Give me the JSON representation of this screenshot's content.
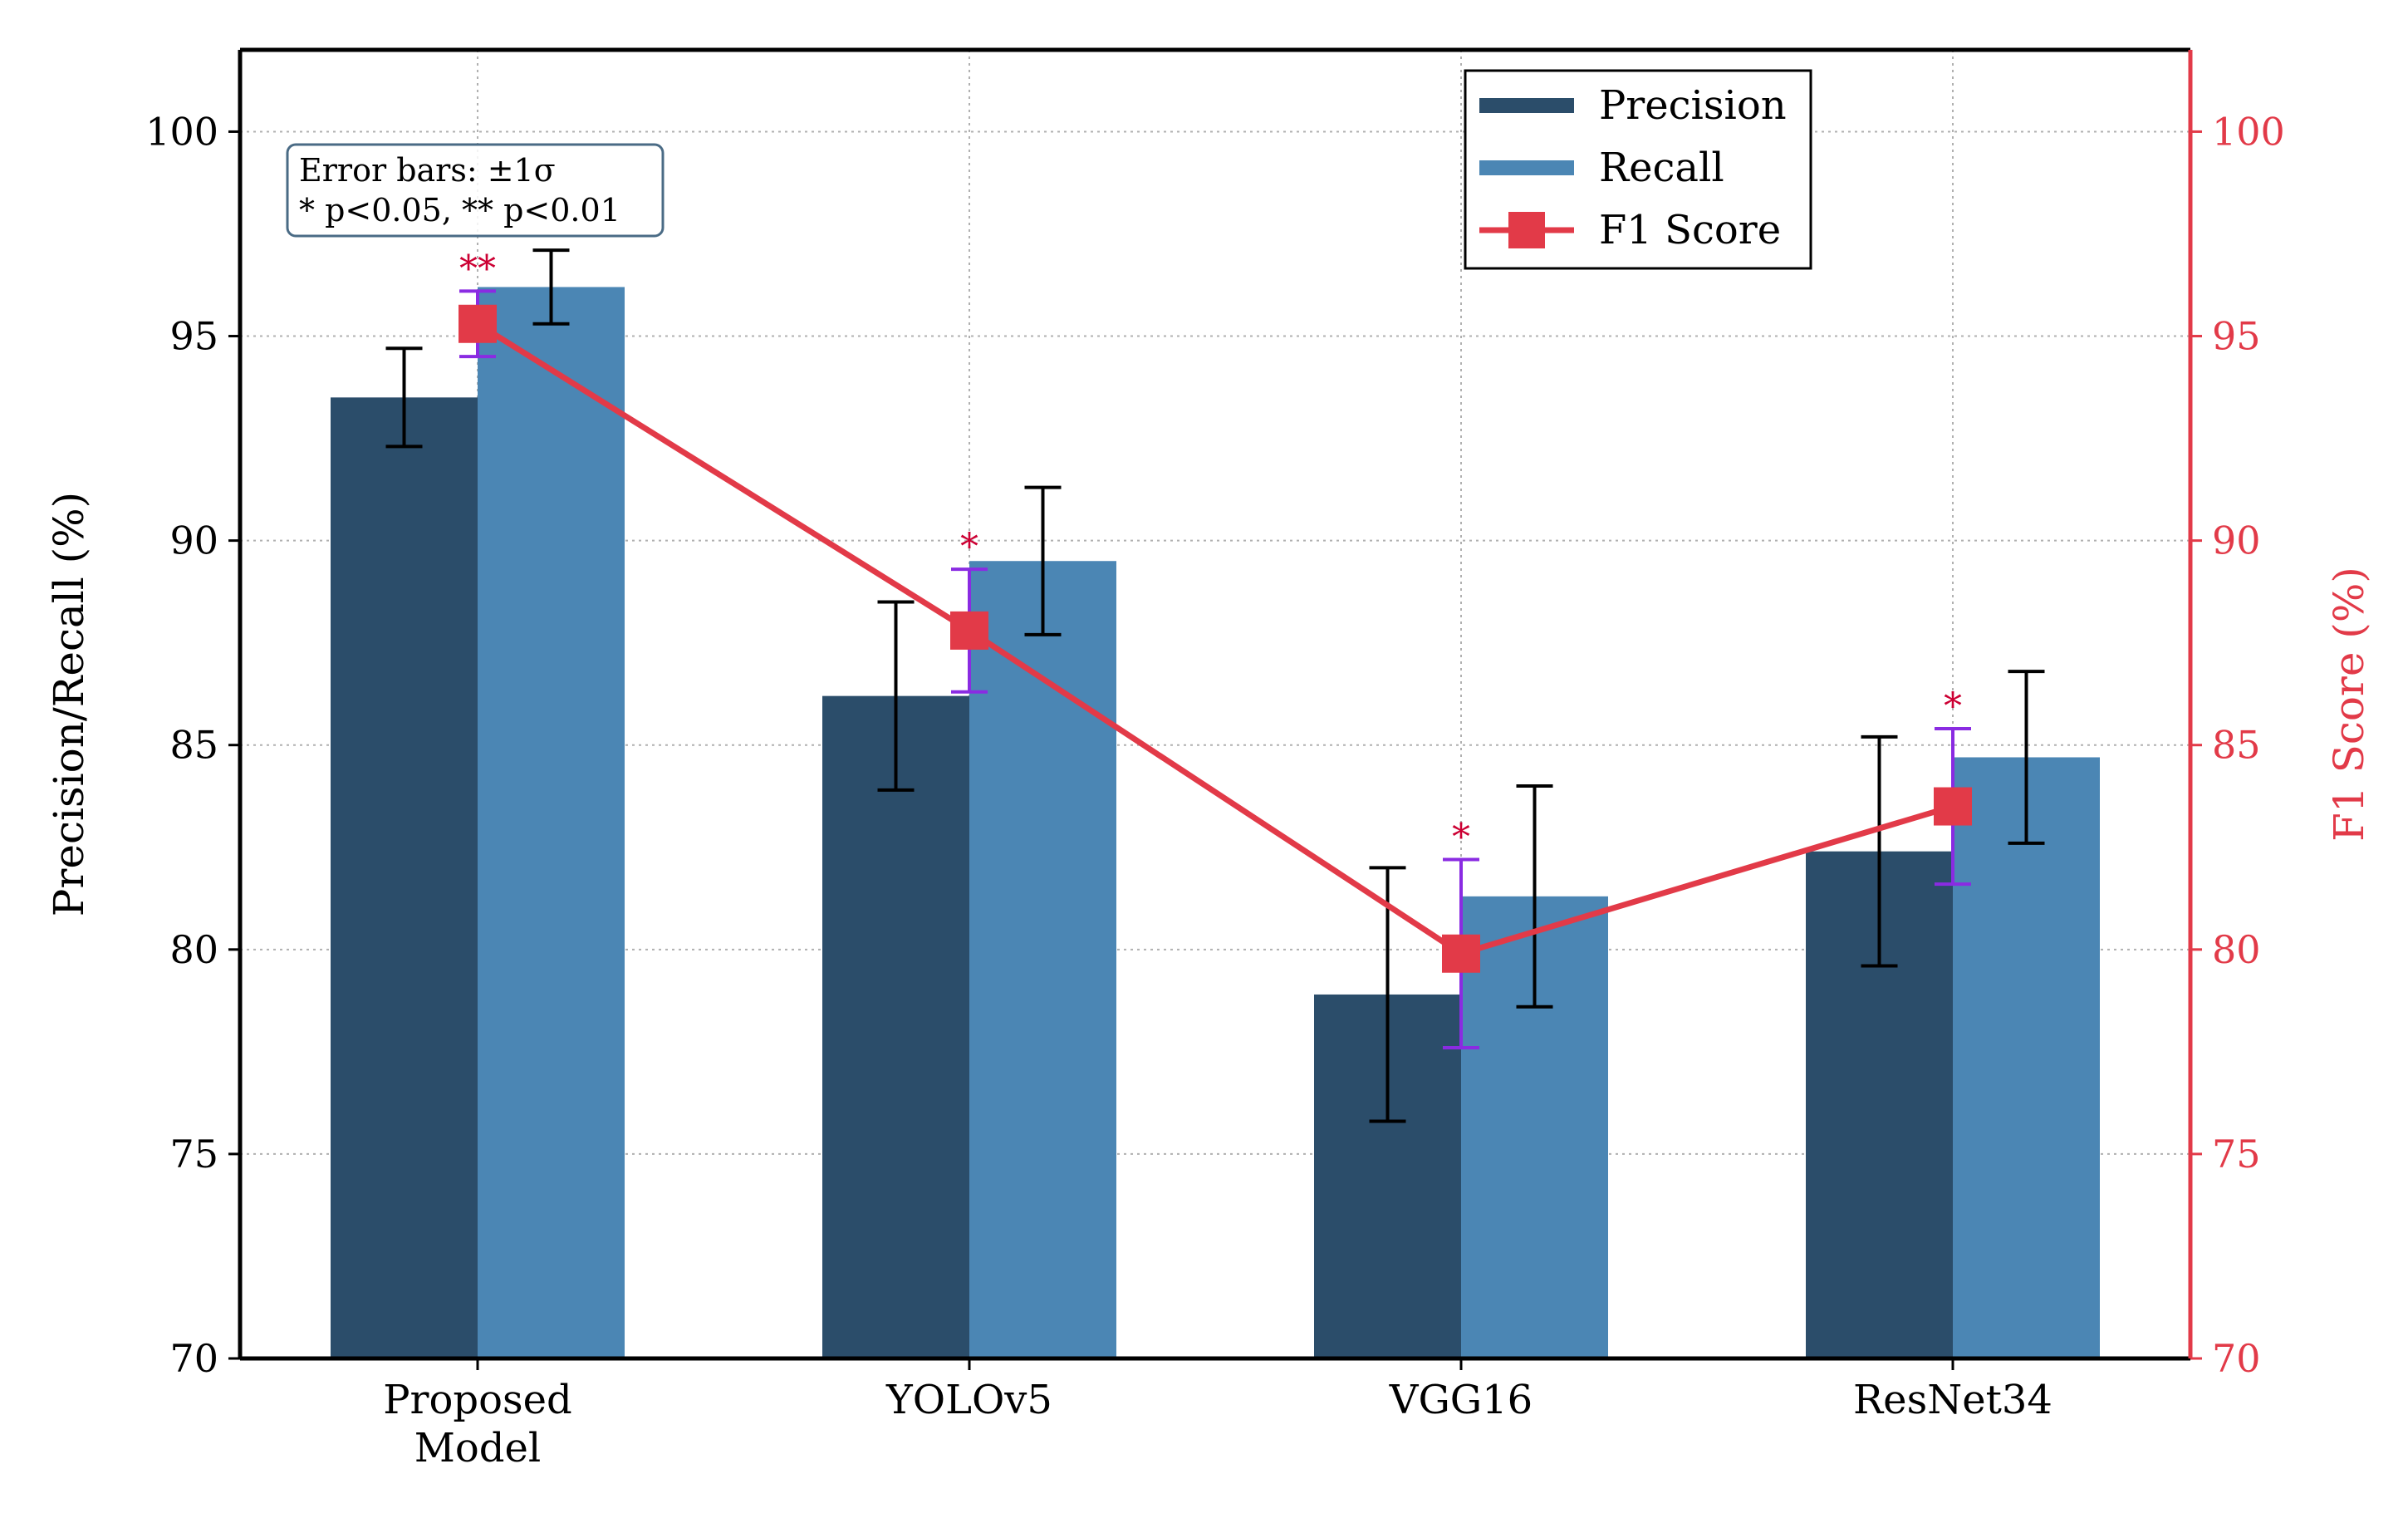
{
  "chart_data": {
    "type": "bar",
    "categories": [
      "Proposed\nModel",
      "YOLOv5",
      "VGG16",
      "ResNet34"
    ],
    "series": [
      {
        "name": "Precision",
        "kind": "bar",
        "axis": "left",
        "color": "#2b4d6a",
        "values": [
          93.5,
          86.2,
          78.9,
          82.4
        ],
        "err": [
          1.2,
          2.3,
          3.1,
          2.8
        ]
      },
      {
        "name": "Recall",
        "kind": "bar",
        "axis": "left",
        "color": "#4b86b4",
        "values": [
          96.2,
          89.5,
          81.3,
          84.7
        ],
        "err": [
          0.9,
          1.8,
          2.7,
          2.1
        ]
      },
      {
        "name": "F1 Score",
        "kind": "line",
        "axis": "right",
        "color": "#e23a48",
        "err_color": "#8a2be2",
        "values": [
          95.3,
          87.8,
          79.9,
          83.5
        ],
        "err": [
          0.8,
          1.5,
          2.3,
          1.9
        ],
        "significance": [
          "**",
          "*",
          "*",
          "*"
        ]
      }
    ],
    "ylabel": "Precision/Recall (%)",
    "y2label": "F1 Score (%)",
    "ylim": [
      70,
      102
    ],
    "y2lim": [
      70,
      102
    ],
    "yticks": [
      70,
      75,
      80,
      85,
      90,
      95,
      100
    ],
    "y2ticks": [
      70,
      75,
      80,
      85,
      90,
      95,
      100
    ],
    "grid": true,
    "legend": "top-right",
    "annotation": [
      "Error bars: ±1σ",
      "* p<0.05, ** p<0.01"
    ],
    "colors": {
      "axis": "#000000",
      "right_axis": "#e23a48",
      "grid": "#b0b0b0",
      "star": "#cc0033"
    }
  }
}
